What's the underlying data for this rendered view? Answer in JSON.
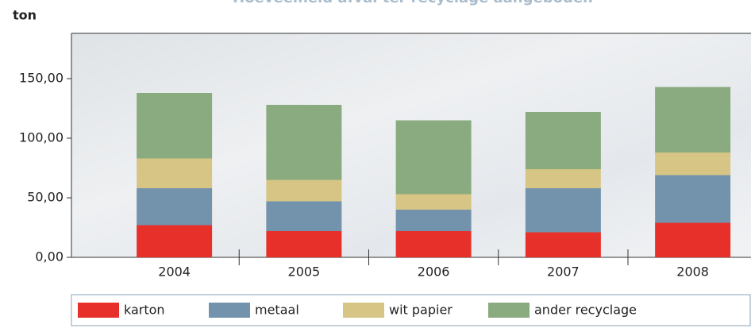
{
  "chart_data": {
    "type": "stacked_bar",
    "title": "Hoeveelheid afval ter recyclage aangeboden",
    "y_label": "ton",
    "categories": [
      "2004",
      "2005",
      "2006",
      "2007",
      "2008"
    ],
    "series": [
      {
        "name": "karton",
        "color": "#e8302a",
        "values": [
          27,
          22,
          22,
          21,
          29
        ]
      },
      {
        "name": "metaal",
        "color": "#7393ad",
        "values": [
          31,
          25,
          18,
          37,
          40
        ]
      },
      {
        "name": "wit papier",
        "color": "#d6c584",
        "values": [
          25,
          18,
          13,
          16,
          19
        ]
      },
      {
        "name": "ander recyclage",
        "color": "#8aab7f",
        "values": [
          55,
          63,
          62,
          48,
          55
        ]
      }
    ],
    "ylim": [
      0,
      188
    ],
    "yticks": [
      {
        "value": 0,
        "label": "0,00"
      },
      {
        "value": 50,
        "label": "50,00"
      },
      {
        "value": 100,
        "label": "100,00"
      },
      {
        "value": 150,
        "label": "150,00"
      }
    ]
  }
}
